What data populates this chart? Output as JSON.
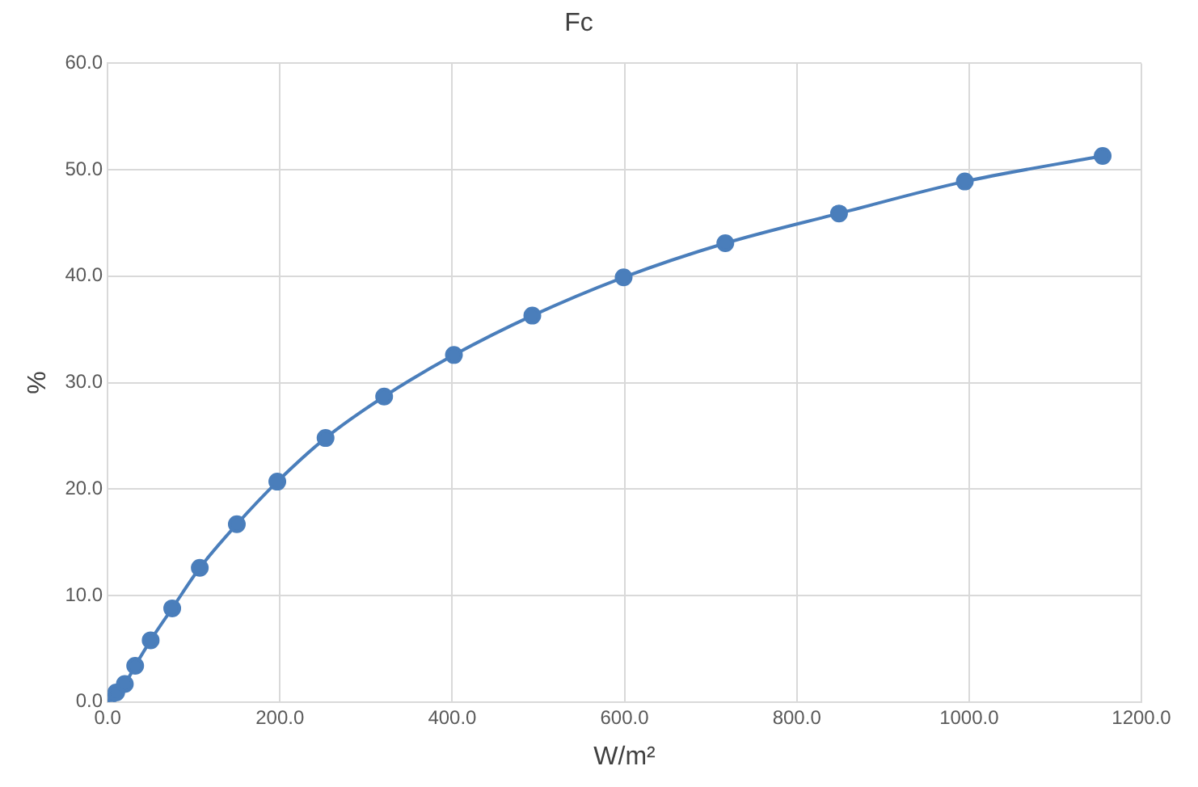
{
  "chart_data": {
    "type": "line",
    "title": "Fc",
    "xlabel": "W/m²",
    "ylabel": "%",
    "x": [
      0,
      5,
      10,
      20,
      32,
      50,
      75,
      107,
      150,
      197,
      253,
      321,
      402,
      493,
      599,
      717,
      849,
      995,
      1155
    ],
    "series": [
      {
        "color": "#4a7ebb",
        "values": [
          0,
          null,
          0.9,
          1.7,
          3.4,
          5.8,
          8.8,
          12.6,
          16.7,
          20.7,
          24.8,
          28.7,
          32.6,
          36.3,
          39.9,
          43.1,
          45.9,
          48.9,
          51.3
        ]
      }
    ],
    "xlim": [
      0,
      1200
    ],
    "xticks": [
      {
        "value": 0,
        "label": "0.0"
      },
      {
        "value": 200,
        "label": "200.0"
      },
      {
        "value": 400,
        "label": "400.0"
      },
      {
        "value": 600,
        "label": "600.0"
      },
      {
        "value": 800,
        "label": "800.0"
      },
      {
        "value": 1000,
        "label": "1000.0"
      },
      {
        "value": 1200,
        "label": "1200.0"
      }
    ],
    "ylim": [
      0,
      60
    ],
    "yticks": [
      {
        "value": 0,
        "label": "0.0"
      },
      {
        "value": 10,
        "label": "10.0"
      },
      {
        "value": 20,
        "label": "20.0"
      },
      {
        "value": 30,
        "label": "30.0"
      },
      {
        "value": 40,
        "label": "40.0"
      },
      {
        "value": 50,
        "label": "50.0"
      },
      {
        "value": 60,
        "label": "60.0"
      }
    ],
    "grid": true,
    "marker": "circle",
    "line_style": "solid"
  }
}
